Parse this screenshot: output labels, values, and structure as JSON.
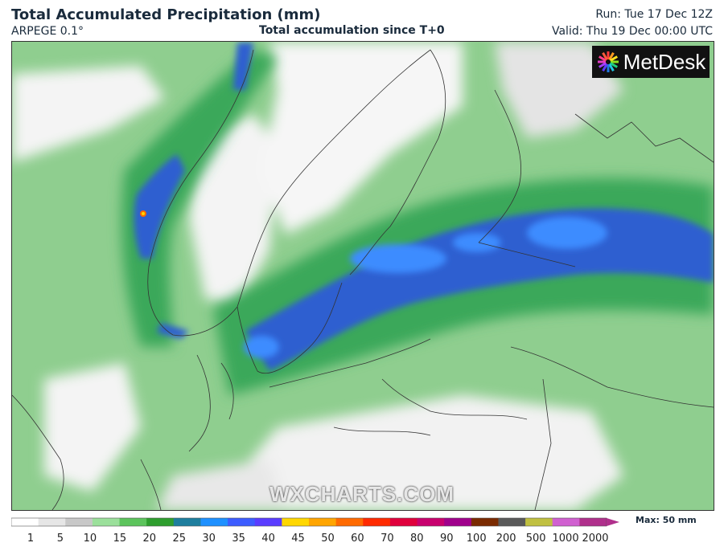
{
  "header": {
    "title": "Total Accumulated Precipitation (mm)",
    "model": "ARPEGE 0.1°",
    "subtitle": "Total accumulation since T+0",
    "run": "Run: Tue 17 Dec 12Z",
    "valid": "Valid: Thu 19 Dec 00:00 UTC"
  },
  "logo": {
    "text": "MetDesk",
    "icon": "metdesk-starburst-icon"
  },
  "watermark": "WXCHARTS.COM",
  "legend": {
    "ticks": [
      "1",
      "5",
      "10",
      "15",
      "20",
      "25",
      "30",
      "35",
      "40",
      "45",
      "50",
      "60",
      "70",
      "80",
      "90",
      "100",
      "200",
      "500",
      "1000",
      "2000"
    ],
    "max_label": "Max: 50 mm",
    "colors": [
      "#ffffff",
      "#e6e6e6",
      "#c8c8c8",
      "#9be09b",
      "#5cc45c",
      "#2e9e2e",
      "#1e7e9e",
      "#1e90ff",
      "#3c5cff",
      "#5a3cff",
      "#ffd700",
      "#ffa500",
      "#ff6a00",
      "#ff2a00",
      "#e0003c",
      "#c8006e",
      "#a0008c",
      "#7a2a00",
      "#5a5a5a",
      "#c0c040",
      "#d060d0",
      "#b0308c"
    ]
  },
  "colors": {
    "land_dry": "#ececec",
    "light_precip": "#7fc97f",
    "moderate_precip": "#2e9e4a",
    "heavy_precip": "#1e5ec8",
    "very_heavy_precip": "#2a8cff",
    "border": "#333333"
  }
}
